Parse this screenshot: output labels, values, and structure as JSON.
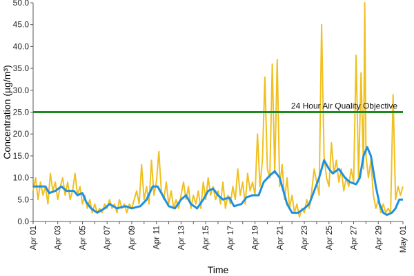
{
  "chart_data": {
    "type": "line",
    "xlabel": "Time",
    "ylabel": "Concentration (µg/m³)",
    "ylim": [
      0,
      50
    ],
    "y_ticks": [
      "0.0",
      "5.0",
      "10.0",
      "15.0",
      "20.0",
      "25.0",
      "30.0",
      "35.0",
      "40.0",
      "45.0",
      "50.0"
    ],
    "x_range_days": [
      0,
      30
    ],
    "x_ticks": [
      {
        "day": 0,
        "label": "Apr 01"
      },
      {
        "day": 2,
        "label": "Apr 03"
      },
      {
        "day": 4,
        "label": "Apr 05"
      },
      {
        "day": 6,
        "label": "Apr 07"
      },
      {
        "day": 8,
        "label": "Apr 09"
      },
      {
        "day": 10,
        "label": "Apr 11"
      },
      {
        "day": 12,
        "label": "Apr 13"
      },
      {
        "day": 14,
        "label": "Apr 15"
      },
      {
        "day": 16,
        "label": "Apr 17"
      },
      {
        "day": 18,
        "label": "Apr 19"
      },
      {
        "day": 20,
        "label": "Apr 21"
      },
      {
        "day": 22,
        "label": "Apr 23"
      },
      {
        "day": 24,
        "label": "Apr 25"
      },
      {
        "day": 26,
        "label": "Apr 27"
      },
      {
        "day": 28,
        "label": "Apr 29"
      },
      {
        "day": 30,
        "label": "May 01"
      }
    ],
    "threshold": {
      "value": 25,
      "label": "24 Hour Air Quality Objective",
      "color": "#1f8a1f"
    },
    "series": [
      {
        "color": "#f0c020",
        "points": [
          [
            0,
            7
          ],
          [
            0.2,
            10
          ],
          [
            0.4,
            5
          ],
          [
            0.6,
            9
          ],
          [
            0.8,
            6
          ],
          [
            1.0,
            8
          ],
          [
            1.2,
            4
          ],
          [
            1.4,
            11
          ],
          [
            1.6,
            7
          ],
          [
            1.8,
            9
          ],
          [
            2.0,
            5
          ],
          [
            2.2,
            8
          ],
          [
            2.4,
            10
          ],
          [
            2.6,
            6
          ],
          [
            2.8,
            9
          ],
          [
            3.0,
            5
          ],
          [
            3.2,
            7
          ],
          [
            3.4,
            11
          ],
          [
            3.6,
            6
          ],
          [
            3.8,
            8
          ],
          [
            4.0,
            4
          ],
          [
            4.2,
            6
          ],
          [
            4.4,
            3
          ],
          [
            4.6,
            5
          ],
          [
            4.8,
            2
          ],
          [
            5.0,
            4
          ],
          [
            5.2,
            2
          ],
          [
            5.4,
            3
          ],
          [
            5.6,
            2
          ],
          [
            5.8,
            4
          ],
          [
            6.0,
            3
          ],
          [
            6.2,
            5
          ],
          [
            6.4,
            3
          ],
          [
            6.6,
            4
          ],
          [
            6.8,
            2
          ],
          [
            7.0,
            5
          ],
          [
            7.2,
            3
          ],
          [
            7.4,
            4
          ],
          [
            7.6,
            2
          ],
          [
            7.8,
            4
          ],
          [
            8.0,
            3
          ],
          [
            8.2,
            5
          ],
          [
            8.4,
            7
          ],
          [
            8.6,
            4
          ],
          [
            8.8,
            13
          ],
          [
            9.0,
            5
          ],
          [
            9.2,
            8
          ],
          [
            9.4,
            4
          ],
          [
            9.6,
            14
          ],
          [
            9.8,
            6
          ],
          [
            10.0,
            9
          ],
          [
            10.2,
            16
          ],
          [
            10.4,
            7
          ],
          [
            10.6,
            5
          ],
          [
            10.8,
            9
          ],
          [
            11.0,
            4
          ],
          [
            11.2,
            7
          ],
          [
            11.4,
            3
          ],
          [
            11.6,
            5
          ],
          [
            11.8,
            3
          ],
          [
            12.0,
            6
          ],
          [
            12.2,
            9
          ],
          [
            12.4,
            5
          ],
          [
            12.6,
            8
          ],
          [
            12.8,
            3
          ],
          [
            13.0,
            6
          ],
          [
            13.2,
            4
          ],
          [
            13.4,
            7
          ],
          [
            13.6,
            3
          ],
          [
            13.8,
            9
          ],
          [
            14.0,
            5
          ],
          [
            14.2,
            10
          ],
          [
            14.4,
            6
          ],
          [
            14.6,
            8
          ],
          [
            14.8,
            5
          ],
          [
            15.0,
            7
          ],
          [
            15.2,
            4
          ],
          [
            15.4,
            9
          ],
          [
            15.6,
            3
          ],
          [
            15.8,
            6
          ],
          [
            16.0,
            4
          ],
          [
            16.2,
            8
          ],
          [
            16.4,
            5
          ],
          [
            16.6,
            12
          ],
          [
            16.8,
            6
          ],
          [
            17.0,
            9
          ],
          [
            17.2,
            4
          ],
          [
            17.4,
            11
          ],
          [
            17.6,
            7
          ],
          [
            17.8,
            9
          ],
          [
            18.0,
            6
          ],
          [
            18.2,
            20
          ],
          [
            18.4,
            8
          ],
          [
            18.6,
            14
          ],
          [
            18.8,
            33
          ],
          [
            19.0,
            12
          ],
          [
            19.2,
            10
          ],
          [
            19.4,
            36
          ],
          [
            19.6,
            11
          ],
          [
            19.8,
            37
          ],
          [
            20.0,
            8
          ],
          [
            20.2,
            13
          ],
          [
            20.4,
            5
          ],
          [
            20.6,
            10
          ],
          [
            20.8,
            3
          ],
          [
            21.0,
            6
          ],
          [
            21.2,
            2
          ],
          [
            21.4,
            4
          ],
          [
            21.6,
            1
          ],
          [
            21.8,
            3
          ],
          [
            22.0,
            2
          ],
          [
            22.2,
            5
          ],
          [
            22.4,
            3
          ],
          [
            22.6,
            7
          ],
          [
            22.8,
            12
          ],
          [
            23.0,
            9
          ],
          [
            23.2,
            6
          ],
          [
            23.4,
            45
          ],
          [
            23.6,
            15
          ],
          [
            23.8,
            10
          ],
          [
            24.0,
            8
          ],
          [
            24.2,
            18
          ],
          [
            24.4,
            11
          ],
          [
            24.6,
            14
          ],
          [
            24.8,
            9
          ],
          [
            25.0,
            12
          ],
          [
            25.2,
            7
          ],
          [
            25.4,
            10
          ],
          [
            25.6,
            8
          ],
          [
            25.8,
            12
          ],
          [
            26.0,
            9
          ],
          [
            26.2,
            38
          ],
          [
            26.4,
            10
          ],
          [
            26.6,
            34
          ],
          [
            26.8,
            12
          ],
          [
            26.9,
            50
          ],
          [
            27.0,
            15
          ],
          [
            27.2,
            10
          ],
          [
            27.4,
            14
          ],
          [
            27.6,
            6
          ],
          [
            27.8,
            3
          ],
          [
            28.0,
            5
          ],
          [
            28.2,
            2
          ],
          [
            28.4,
            4
          ],
          [
            28.6,
            2
          ],
          [
            28.8,
            3
          ],
          [
            29.0,
            2
          ],
          [
            29.2,
            29
          ],
          [
            29.4,
            5
          ],
          [
            29.6,
            8
          ],
          [
            29.8,
            6
          ],
          [
            30.0,
            8
          ]
        ]
      },
      {
        "color": "#1e90e0",
        "points": [
          [
            0,
            8
          ],
          [
            1.0,
            8
          ],
          [
            1.3,
            6.5
          ],
          [
            1.8,
            7
          ],
          [
            2.3,
            8
          ],
          [
            2.7,
            7
          ],
          [
            3.3,
            7
          ],
          [
            3.6,
            6
          ],
          [
            4.0,
            6.5
          ],
          [
            4.3,
            4.5
          ],
          [
            4.7,
            3
          ],
          [
            5.2,
            2
          ],
          [
            5.8,
            3
          ],
          [
            6.2,
            4
          ],
          [
            6.8,
            3
          ],
          [
            7.5,
            3.5
          ],
          [
            8.0,
            3
          ],
          [
            8.7,
            3.5
          ],
          [
            9.2,
            5
          ],
          [
            9.7,
            8
          ],
          [
            10.1,
            8
          ],
          [
            10.5,
            6
          ],
          [
            11.0,
            3.5
          ],
          [
            11.5,
            3
          ],
          [
            12.0,
            5
          ],
          [
            12.4,
            6
          ],
          [
            12.8,
            4
          ],
          [
            13.3,
            3
          ],
          [
            13.8,
            5
          ],
          [
            14.2,
            7
          ],
          [
            14.6,
            7.5
          ],
          [
            15.0,
            6
          ],
          [
            15.4,
            5
          ],
          [
            15.9,
            5.5
          ],
          [
            16.3,
            3.5
          ],
          [
            16.9,
            4
          ],
          [
            17.3,
            5.5
          ],
          [
            17.8,
            6
          ],
          [
            18.3,
            6
          ],
          [
            18.7,
            9
          ],
          [
            19.2,
            10.5
          ],
          [
            19.6,
            11.5
          ],
          [
            20.0,
            10
          ],
          [
            20.3,
            7
          ],
          [
            20.6,
            4
          ],
          [
            21.0,
            2
          ],
          [
            21.5,
            2
          ],
          [
            22.0,
            3
          ],
          [
            22.4,
            4
          ],
          [
            22.8,
            7
          ],
          [
            23.2,
            10
          ],
          [
            23.6,
            14
          ],
          [
            24.0,
            12
          ],
          [
            24.3,
            11
          ],
          [
            24.8,
            12
          ],
          [
            25.3,
            10
          ],
          [
            25.7,
            9
          ],
          [
            26.2,
            8.5
          ],
          [
            26.5,
            10
          ],
          [
            26.8,
            15
          ],
          [
            27.1,
            17
          ],
          [
            27.4,
            15
          ],
          [
            27.8,
            8
          ],
          [
            28.1,
            4
          ],
          [
            28.4,
            2
          ],
          [
            28.7,
            1.5
          ],
          [
            29.1,
            2
          ],
          [
            29.4,
            3
          ],
          [
            29.7,
            5
          ],
          [
            30.0,
            5
          ]
        ]
      }
    ]
  }
}
